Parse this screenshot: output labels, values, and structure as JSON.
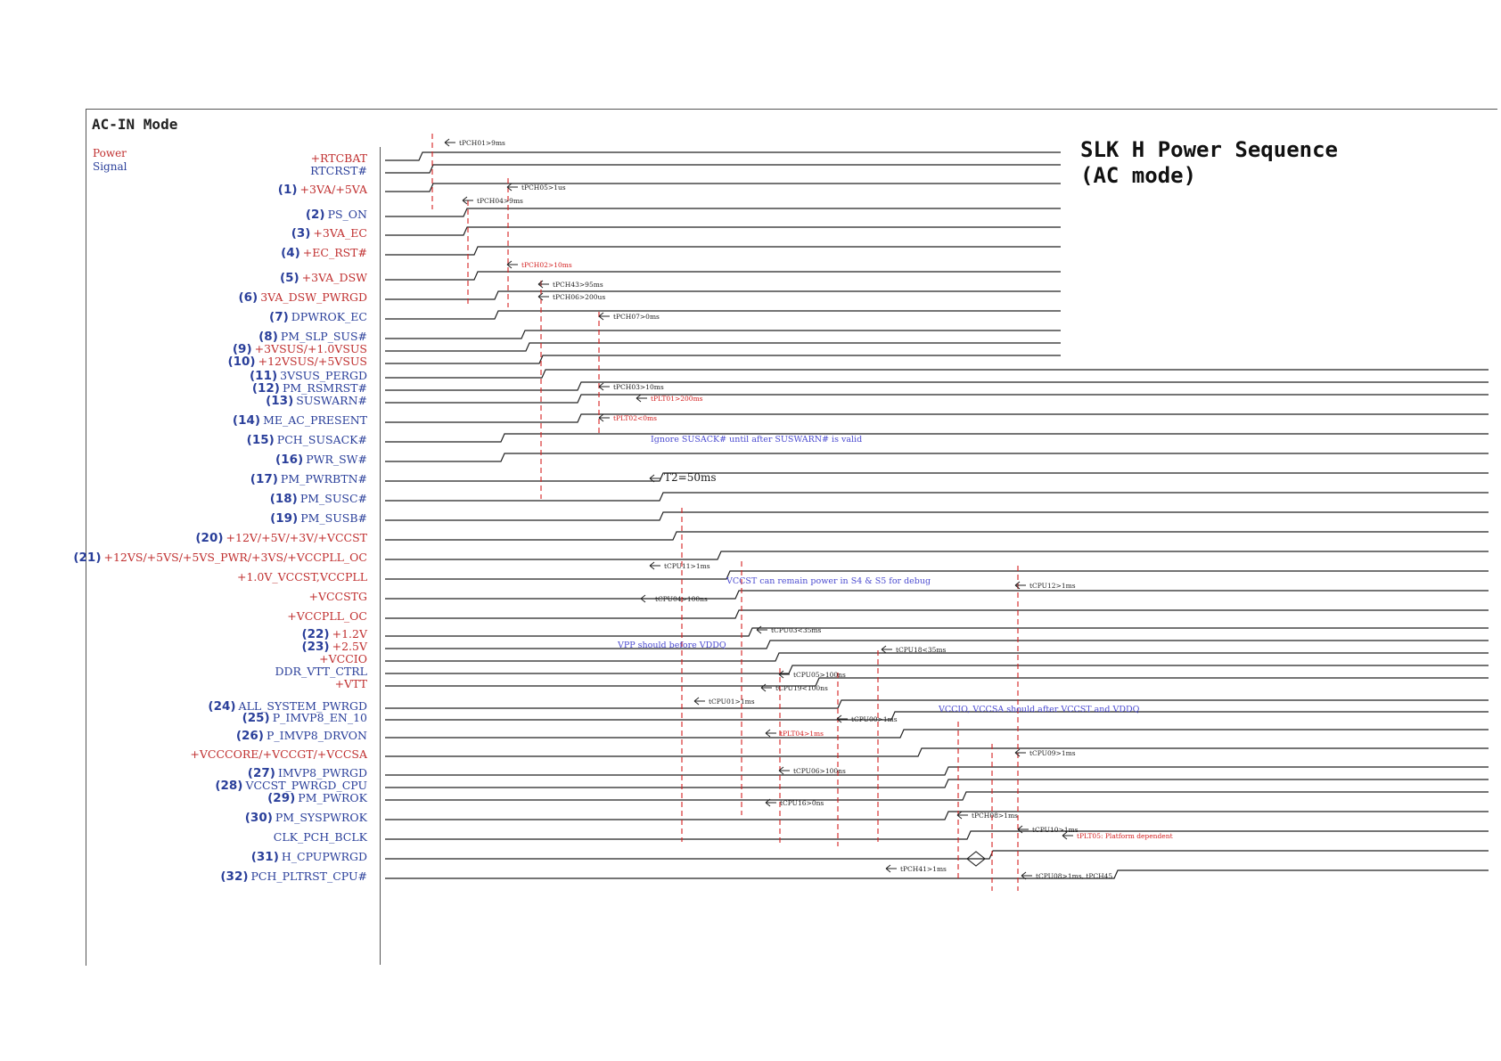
{
  "mode_title": "AC-IN Mode",
  "legend": {
    "power": "Power",
    "signal": "Signal"
  },
  "diagram_title": {
    "line1": "SLK H Power Sequence",
    "line2": "(AC mode)"
  },
  "colors": {
    "power": "#c03030",
    "signal": "#2a3f9a",
    "waveform": "#222222",
    "marker": "#d42020",
    "note": "#4b4bd0"
  },
  "signals": [
    {
      "num": "",
      "name": "+RTCBAT",
      "kind": "power"
    },
    {
      "num": "",
      "name": "RTCRST#",
      "kind": "signal"
    },
    {
      "num": "(1)",
      "name": "+3VA/+5VA",
      "kind": "power"
    },
    {
      "num": "(2)",
      "name": "PS_ON",
      "kind": "signal"
    },
    {
      "num": "(3)",
      "name": "+3VA_EC",
      "kind": "power"
    },
    {
      "num": "(4)",
      "name": "+EC_RST#",
      "kind": "power"
    },
    {
      "num": "(5)",
      "name": "+3VA_DSW",
      "kind": "power"
    },
    {
      "num": "(6)",
      "name": "3VA_DSW_PWRGD",
      "kind": "power"
    },
    {
      "num": "(7)",
      "name": "DPWROK_EC",
      "kind": "signal"
    },
    {
      "num": "(8)",
      "name": "PM_SLP_SUS#",
      "kind": "signal"
    },
    {
      "num": "(9)",
      "name": "+3VSUS/+1.0VSUS",
      "kind": "power"
    },
    {
      "num": "(10)",
      "name": "+12VSUS/+5VSUS",
      "kind": "power"
    },
    {
      "num": "(11)",
      "name": "3VSUS_PERGD",
      "kind": "signal"
    },
    {
      "num": "(12)",
      "name": "PM_RSMRST#",
      "kind": "signal"
    },
    {
      "num": "(13)",
      "name": "SUSWARN#",
      "kind": "signal"
    },
    {
      "num": "(14)",
      "name": "ME_AC_PRESENT",
      "kind": "signal"
    },
    {
      "num": "(15)",
      "name": "PCH_SUSACK#",
      "kind": "signal"
    },
    {
      "num": "(16)",
      "name": "PWR_SW#",
      "kind": "signal"
    },
    {
      "num": "(17)",
      "name": "PM_PWRBTN#",
      "kind": "signal"
    },
    {
      "num": "(18)",
      "name": "PM_SUSC#",
      "kind": "signal"
    },
    {
      "num": "(19)",
      "name": "PM_SUSB#",
      "kind": "signal"
    },
    {
      "num": "(20)",
      "name": "+12V/+5V/+3V/+VCCST",
      "kind": "power"
    },
    {
      "num": "(21)",
      "name": "+12VS/+5VS/+5VS_PWR/+3VS/+VCCPLL_OC",
      "kind": "power"
    },
    {
      "num": "",
      "name": "+1.0V_VCCST,VCCPLL",
      "kind": "power"
    },
    {
      "num": "",
      "name": "+VCCSTG",
      "kind": "power"
    },
    {
      "num": "",
      "name": "+VCCPLL_OC",
      "kind": "power"
    },
    {
      "num": "(22)",
      "name": "+1.2V",
      "kind": "power"
    },
    {
      "num": "(23)",
      "name": "+2.5V",
      "kind": "power"
    },
    {
      "num": "",
      "name": "+VCCIO",
      "kind": "power"
    },
    {
      "num": "",
      "name": "DDR_VTT_CTRL",
      "kind": "signal"
    },
    {
      "num": "",
      "name": "+VTT",
      "kind": "power"
    },
    {
      "num": "(24)",
      "name": "ALL_SYSTEM_PWRGD",
      "kind": "signal"
    },
    {
      "num": "(25)",
      "name": "P_IMVP8_EN_10",
      "kind": "signal"
    },
    {
      "num": "(26)",
      "name": "P_IMVP8_DRVON",
      "kind": "signal"
    },
    {
      "num": "",
      "name": "+VCCCORE/+VCCGT/+VCCSA",
      "kind": "power"
    },
    {
      "num": "(27)",
      "name": "IMVP8_PWRGD",
      "kind": "signal"
    },
    {
      "num": "(28)",
      "name": "VCCST_PWRGD_CPU",
      "kind": "signal"
    },
    {
      "num": "(29)",
      "name": "PM_PWROK",
      "kind": "signal"
    },
    {
      "num": "(30)",
      "name": "PM_SYSPWROK",
      "kind": "signal"
    },
    {
      "num": "",
      "name": "CLK_PCH_BCLK",
      "kind": "signal"
    },
    {
      "num": "(31)",
      "name": "H_CPUPWRGD",
      "kind": "signal"
    },
    {
      "num": "(32)",
      "name": "PCH_PLTRST_CPU#",
      "kind": "signal"
    }
  ],
  "timing_labels": [
    {
      "text": "tPCH01>9ms",
      "color": "#222222"
    },
    {
      "text": "tPCH05>1us",
      "color": "#222222"
    },
    {
      "text": "tPCH04>9ms",
      "color": "#222222"
    },
    {
      "text": "tPCH02>10ms",
      "color": "#d42020"
    },
    {
      "text": "tPCH43>95ms",
      "color": "#222222"
    },
    {
      "text": "tPCH06>200us",
      "color": "#222222"
    },
    {
      "text": "tPCH07>0ms",
      "color": "#222222"
    },
    {
      "text": "tPCH03>10ms",
      "color": "#222222"
    },
    {
      "text": "tPLT01>200ms",
      "color": "#d42020"
    },
    {
      "text": "tPLT02<0ms",
      "color": "#d42020"
    },
    {
      "text": "tCPU11>1ms",
      "color": "#222222"
    },
    {
      "text": "tCPU12>1ms",
      "color": "#222222"
    },
    {
      "text": "tCPU04>100ns",
      "color": "#222222"
    },
    {
      "text": "tCPU03<35ms",
      "color": "#222222"
    },
    {
      "text": "tCPU18<35ms",
      "color": "#222222"
    },
    {
      "text": "tCPU05>100ns",
      "color": "#222222"
    },
    {
      "text": "tCPU19<100ns",
      "color": "#222222"
    },
    {
      "text": "tCPU01>1ms",
      "color": "#222222"
    },
    {
      "text": "tCPU00>1ms",
      "color": "#222222"
    },
    {
      "text": "tPLT04>1ms",
      "color": "#d42020"
    },
    {
      "text": "tCPU09>1ms",
      "color": "#222222"
    },
    {
      "text": "tCPU06>100ns",
      "color": "#222222"
    },
    {
      "text": "tCPU16>0ns",
      "color": "#222222"
    },
    {
      "text": "tPCH08>1ms",
      "color": "#222222"
    },
    {
      "text": "tCPU10>1ms",
      "color": "#222222"
    },
    {
      "text": "tPLT05: Platform dependent",
      "color": "#d42020"
    },
    {
      "text": "tPCH41>1ms",
      "color": "#222222"
    },
    {
      "text": "tCPU08>1ms, tPCH45",
      "color": "#222222"
    },
    {
      "text": "T2=50ms",
      "color": "#222222"
    }
  ],
  "notes": {
    "susack": "Ignore SUSACK# until after SUSWARN# is valid",
    "vccst": "VCCST can remain power in S4 & S5 for debug",
    "vpp": "VPP should before VDDQ",
    "vccio": "VCCIO, VCCSA should after VCCST and VDDQ"
  }
}
